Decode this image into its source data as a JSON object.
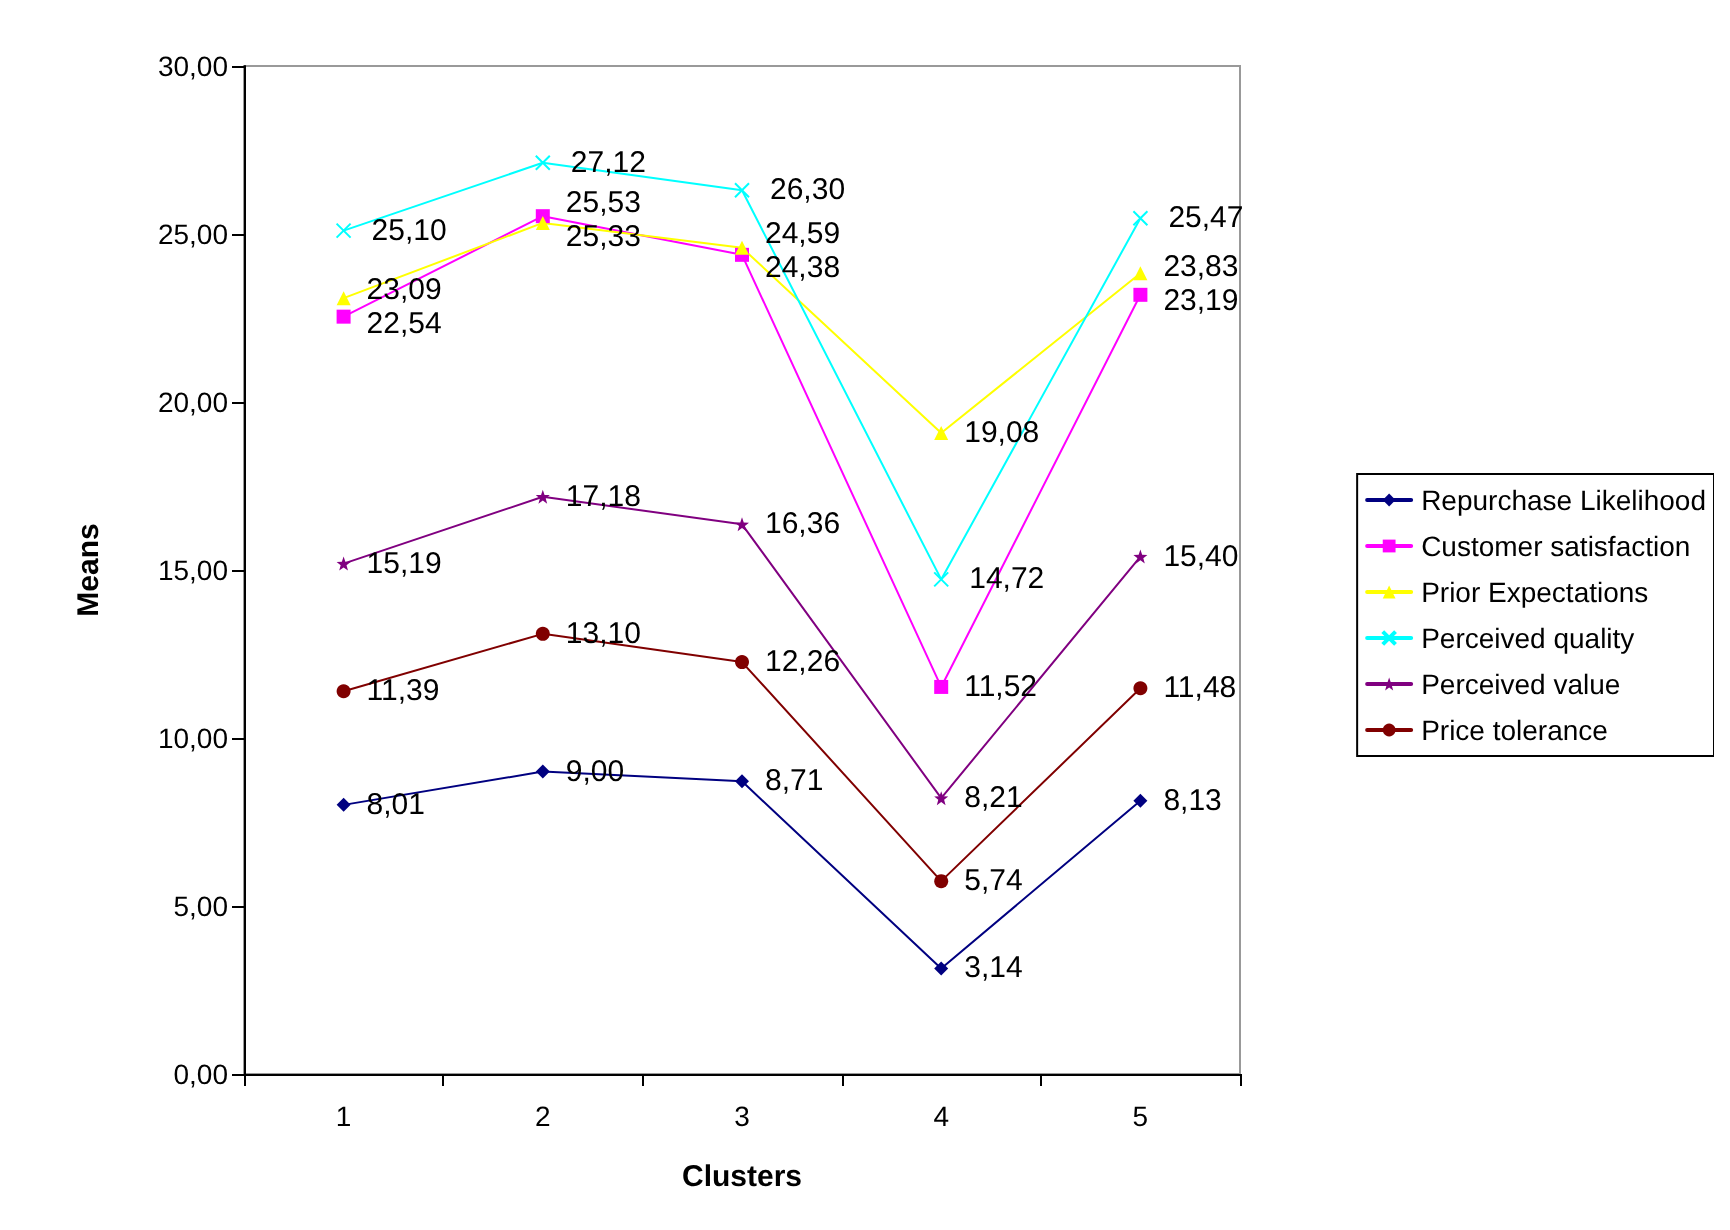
{
  "chart_data": {
    "type": "line",
    "xlabel": "Clusters",
    "ylabel": "Means",
    "categories": [
      "1",
      "2",
      "3",
      "4",
      "5"
    ],
    "ylim": [
      0,
      30
    ],
    "yticks": [
      {
        "value": 0,
        "label": "0,00"
      },
      {
        "value": 5,
        "label": "5,00"
      },
      {
        "value": 10,
        "label": "10,00"
      },
      {
        "value": 15,
        "label": "15,00"
      },
      {
        "value": 20,
        "label": "20,00"
      },
      {
        "value": 25,
        "label": "25,00"
      },
      {
        "value": 30,
        "label": "30,00"
      }
    ],
    "grid": false,
    "legend": "right",
    "series": [
      {
        "name": "Repurchase Likelihood",
        "color": "#000080",
        "marker": "diamond",
        "values": [
          8.01,
          9.0,
          8.71,
          3.14,
          8.13
        ],
        "value_labels": [
          "8,01",
          "9,00",
          "8,71",
          "3,14",
          "8,13"
        ]
      },
      {
        "name": "Customer satisfaction",
        "color": "#ff00ff",
        "marker": "square",
        "values": [
          22.54,
          25.53,
          24.38,
          11.52,
          23.19
        ],
        "value_labels": [
          "22,54",
          "25,53",
          "24,38",
          "11,52",
          "23,19"
        ]
      },
      {
        "name": "Prior Expectations",
        "color": "#ffff00",
        "marker": "triangle",
        "values": [
          23.09,
          25.33,
          24.59,
          19.08,
          23.83
        ],
        "value_labels": [
          "23,09",
          "25,33",
          "24,59",
          "19,08",
          "23,83"
        ]
      },
      {
        "name": "Perceived quality",
        "color": "#00ffff",
        "marker": "cross",
        "values": [
          25.1,
          27.12,
          26.3,
          14.72,
          25.47
        ],
        "value_labels": [
          "25,10",
          "27,12",
          "26,30",
          "14,72",
          "25,47"
        ]
      },
      {
        "name": "Perceived value",
        "color": "#800080",
        "marker": "star",
        "values": [
          15.19,
          17.18,
          16.36,
          8.21,
          15.4
        ],
        "value_labels": [
          "15,19",
          "17,18",
          "16,36",
          "8,21",
          "15,40"
        ]
      },
      {
        "name": "Price tolerance",
        "color": "#800000",
        "marker": "circle",
        "values": [
          11.39,
          13.1,
          12.26,
          5.74,
          11.48
        ],
        "value_labels": [
          "11,39",
          "13,10",
          "12,26",
          "5,74",
          "11,48"
        ]
      }
    ]
  }
}
